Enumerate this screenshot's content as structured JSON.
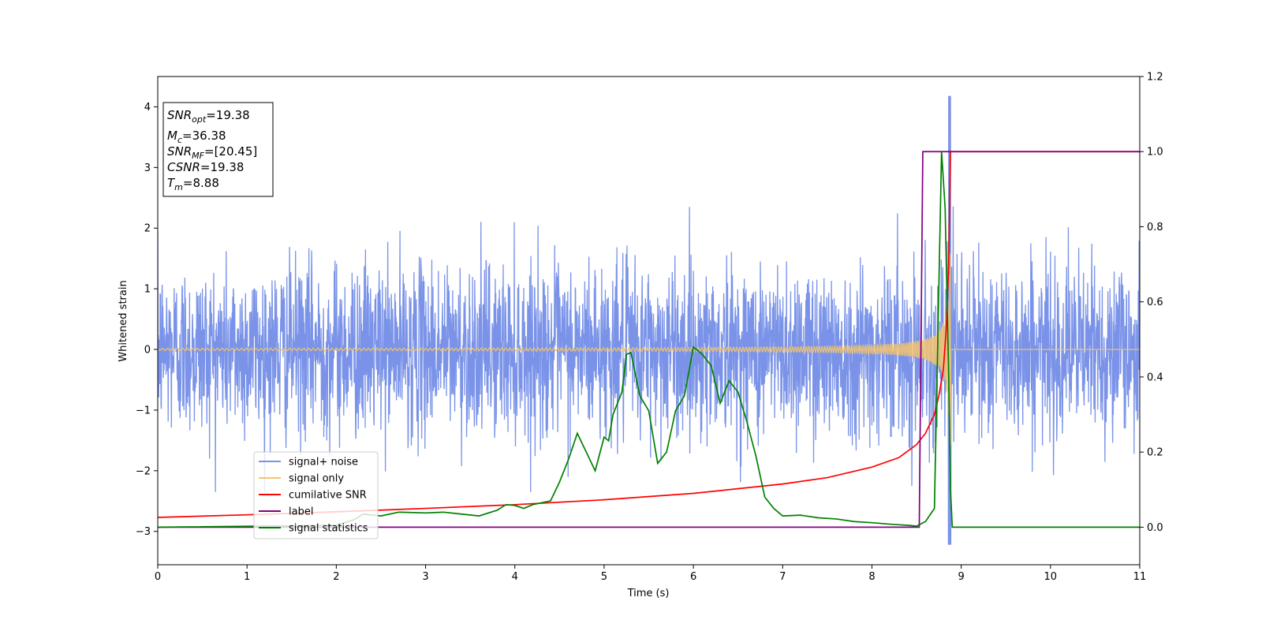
{
  "chart_data": {
    "type": "line",
    "xlabel": "Time (s)",
    "ylabel": "Whitened strain",
    "xlim": [
      0,
      11
    ],
    "ylim": [
      -3.55,
      4.5
    ],
    "y2lim": [
      -0.1,
      1.2
    ],
    "x_ticks": [
      0,
      1,
      2,
      3,
      4,
      5,
      6,
      7,
      8,
      9,
      10,
      11
    ],
    "y_ticks": [
      -3,
      -2,
      -1,
      0,
      1,
      2,
      3,
      4
    ],
    "y2_ticks": [
      0.0,
      0.2,
      0.4,
      0.6,
      0.8,
      1.0,
      1.2
    ],
    "grid": false,
    "legend_position": "lower-left",
    "annotation": {
      "lines": [
        {
          "main": "SNR",
          "sub": "opt",
          "value": "=19.38"
        },
        {
          "main": "M",
          "sub": "c",
          "value": "=36.38"
        },
        {
          "main": "SNR",
          "sub": "MF",
          "value": "=[20.45]"
        },
        {
          "main": "CSNR",
          "sub": "",
          "value": "=19.38"
        },
        {
          "main": "T",
          "sub": "m",
          "value": "=8.88"
        }
      ]
    },
    "series": [
      {
        "name": "signal+ noise",
        "axis": "left",
        "color": "#7a93e8",
        "style": "noise",
        "noise_sigma": 0.7,
        "noise_peak": {
          "x": 8.87,
          "y_max": 4.18,
          "y_min": -3.22
        }
      },
      {
        "name": "signal only",
        "axis": "left",
        "color": "#f5c46e",
        "style": "chirp",
        "chirp_end_time": 8.88,
        "chirp_peak_amplitude": 1.9
      },
      {
        "name": "cumilative SNR",
        "axis": "right",
        "color": "#ff0000",
        "x": [
          0,
          1,
          2,
          3,
          4,
          5,
          6,
          7,
          7.5,
          8,
          8.3,
          8.5,
          8.6,
          8.7,
          8.75,
          8.8,
          8.83,
          8.86,
          8.88,
          9,
          10,
          11
        ],
        "y": [
          0.026,
          0.033,
          0.041,
          0.05,
          0.06,
          0.073,
          0.09,
          0.115,
          0.132,
          0.16,
          0.185,
          0.22,
          0.25,
          0.3,
          0.35,
          0.42,
          0.52,
          0.7,
          1.0,
          1.0,
          1.0,
          1.0
        ]
      },
      {
        "name": "label",
        "axis": "right",
        "color": "#800080",
        "x": [
          0,
          8.53,
          8.57,
          8.88,
          8.89,
          11
        ],
        "y": [
          0,
          0,
          1,
          1,
          1,
          1
        ]
      },
      {
        "name": "signal statistics",
        "axis": "right",
        "color": "#008000",
        "x": [
          0,
          2.0,
          2.2,
          2.3,
          2.5,
          2.7,
          3.0,
          3.2,
          3.4,
          3.6,
          3.8,
          3.9,
          4.0,
          4.1,
          4.2,
          4.4,
          4.5,
          4.6,
          4.7,
          4.8,
          4.9,
          5.0,
          5.05,
          5.1,
          5.2,
          5.25,
          5.3,
          5.4,
          5.5,
          5.6,
          5.7,
          5.8,
          5.9,
          6.0,
          6.1,
          6.2,
          6.3,
          6.4,
          6.5,
          6.6,
          6.7,
          6.8,
          6.9,
          7.0,
          7.2,
          7.4,
          7.6,
          7.8,
          8.0,
          8.2,
          8.4,
          8.5,
          8.6,
          8.7,
          8.78,
          8.82,
          8.86,
          8.88,
          8.9,
          9.0,
          10,
          11
        ],
        "y": [
          0,
          0.005,
          0.02,
          0.035,
          0.03,
          0.04,
          0.038,
          0.04,
          0.035,
          0.03,
          0.045,
          0.06,
          0.058,
          0.05,
          0.06,
          0.07,
          0.12,
          0.18,
          0.25,
          0.2,
          0.15,
          0.24,
          0.23,
          0.3,
          0.36,
          0.46,
          0.465,
          0.35,
          0.31,
          0.17,
          0.2,
          0.31,
          0.35,
          0.48,
          0.46,
          0.43,
          0.33,
          0.39,
          0.36,
          0.28,
          0.19,
          0.08,
          0.05,
          0.03,
          0.032,
          0.025,
          0.022,
          0.015,
          0.012,
          0.008,
          0.005,
          0.003,
          0.015,
          0.05,
          1.0,
          0.85,
          0.4,
          0.1,
          0.0,
          0.0,
          0.0,
          0.0
        ]
      }
    ]
  }
}
